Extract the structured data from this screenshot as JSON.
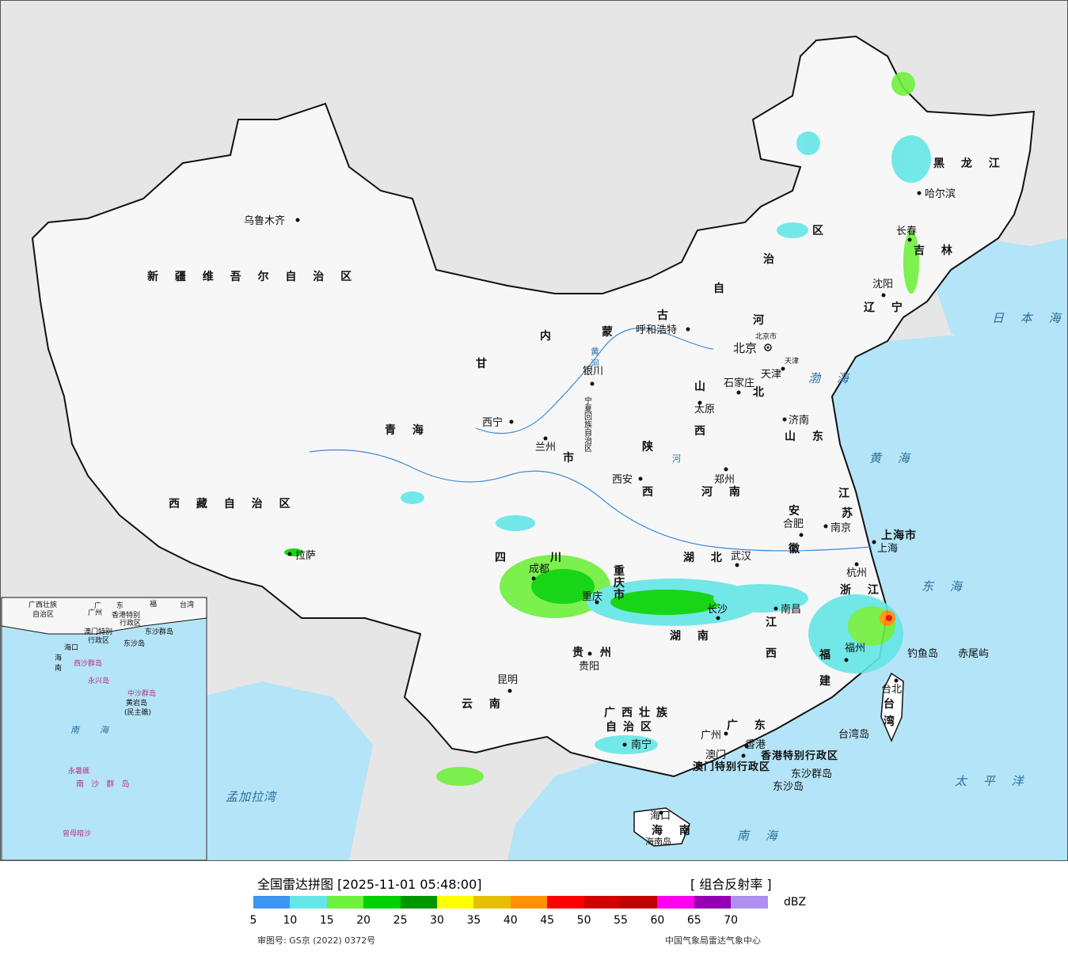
{
  "map": {
    "colors": {
      "land": "#ffffff",
      "foreign_land": "#e6e6e6",
      "sea": "#b4e4f7",
      "border": "#111111"
    },
    "provinces": [
      {
        "name": "新 疆 维 吾 尔 自 治 区"
      },
      {
        "name": "西 藏 自 治 区"
      },
      {
        "name": "青 海"
      },
      {
        "name": "甘"
      },
      {
        "name": "四"
      },
      {
        "name": "川"
      },
      {
        "name": "云 南"
      },
      {
        "name": "内"
      },
      {
        "name": "蒙"
      },
      {
        "name": "古"
      },
      {
        "name": "自"
      },
      {
        "name": "治"
      },
      {
        "name": "区"
      },
      {
        "name": "黑 龙 江"
      },
      {
        "name": "吉 林"
      },
      {
        "name": "辽 宁"
      },
      {
        "name": "河"
      },
      {
        "name": "北"
      },
      {
        "name": "山"
      },
      {
        "name": "西"
      },
      {
        "name": "山 东"
      },
      {
        "name": "陕"
      },
      {
        "name": "西"
      },
      {
        "name": "河 南"
      },
      {
        "name": "湖 北"
      },
      {
        "name": "湖 南"
      },
      {
        "name": "贵 州"
      },
      {
        "name": "广西壮族"
      },
      {
        "name": "自治区"
      },
      {
        "name": "广 东"
      },
      {
        "name": "江"
      },
      {
        "name": "西"
      },
      {
        "name": "浙 江"
      },
      {
        "name": "安"
      },
      {
        "name": "徽"
      },
      {
        "name": "江"
      },
      {
        "name": "苏"
      },
      {
        "name": "福"
      },
      {
        "name": "建"
      },
      {
        "name": "台"
      },
      {
        "name": "湾"
      },
      {
        "name": "海 南"
      },
      {
        "name": "上海市"
      },
      {
        "name": "重"
      },
      {
        "name": "庆"
      },
      {
        "name": "市"
      },
      {
        "name": "宁夏回族自治区"
      },
      {
        "name": "市"
      },
      {
        "name": "香港特别行政区"
      },
      {
        "name": "澳门特别行政区"
      }
    ],
    "cities": [
      {
        "name": "乌鲁木齐"
      },
      {
        "name": "拉萨"
      },
      {
        "name": "西宁"
      },
      {
        "name": "兰州"
      },
      {
        "name": "银川"
      },
      {
        "name": "呼和浩特"
      },
      {
        "name": "北京"
      },
      {
        "name": "北京市"
      },
      {
        "name": "天津"
      },
      {
        "name": "天津"
      },
      {
        "name": "石家庄"
      },
      {
        "name": "太原"
      },
      {
        "name": "济南"
      },
      {
        "name": "郑州"
      },
      {
        "name": "西安"
      },
      {
        "name": "成都"
      },
      {
        "name": "重庆"
      },
      {
        "name": "武汉"
      },
      {
        "name": "长沙"
      },
      {
        "name": "南昌"
      },
      {
        "name": "合肥"
      },
      {
        "name": "南京"
      },
      {
        "name": "上海"
      },
      {
        "name": "杭州"
      },
      {
        "name": "福州"
      },
      {
        "name": "台北"
      },
      {
        "name": "贵阳"
      },
      {
        "name": "昆明"
      },
      {
        "name": "南宁"
      },
      {
        "name": "广州"
      },
      {
        "name": "澳门"
      },
      {
        "name": "香港"
      },
      {
        "name": "海口"
      },
      {
        "name": "哈尔滨"
      },
      {
        "name": "长春"
      },
      {
        "name": "沈阳"
      },
      {
        "name": "钓鱼岛"
      },
      {
        "name": "赤尾屿"
      },
      {
        "name": "台湾岛"
      },
      {
        "name": "东沙群岛"
      },
      {
        "name": "东沙岛"
      },
      {
        "name": "海南岛"
      }
    ],
    "seas": [
      {
        "name": "日 本 海"
      },
      {
        "name": "渤 海"
      },
      {
        "name": "黄 海"
      },
      {
        "name": "东 海"
      },
      {
        "name": "太 平 洋"
      },
      {
        "name": "南 海"
      },
      {
        "name": "孟加拉湾"
      }
    ],
    "rivers": [
      {
        "name": "黄"
      },
      {
        "name": "河"
      },
      {
        "name": "河"
      }
    ],
    "inset": {
      "labels": [
        {
          "name": "广西壮族"
        },
        {
          "name": "自治区"
        },
        {
          "name": "广"
        },
        {
          "name": "东"
        },
        {
          "name": "福"
        },
        {
          "name": "台湾"
        },
        {
          "name": "广州"
        },
        {
          "name": "香港特别"
        },
        {
          "name": "澳门特别"
        },
        {
          "name": "行政区"
        },
        {
          "name": "行政区"
        },
        {
          "name": "东沙群岛"
        },
        {
          "name": "东沙岛"
        },
        {
          "name": "海口"
        },
        {
          "name": "海"
        },
        {
          "name": "南"
        },
        {
          "name": "西沙群岛"
        },
        {
          "name": "中沙群岛"
        },
        {
          "name": "永兴岛"
        },
        {
          "name": "黄岩岛"
        },
        {
          "name": "(民主礁)"
        },
        {
          "name": "南"
        },
        {
          "name": "海"
        },
        {
          "name": "南 沙 群 岛"
        },
        {
          "name": "永暑礁"
        },
        {
          "name": "曾母暗沙"
        }
      ]
    }
  },
  "footer": {
    "title": "全国雷达拼图 [2025-11-01 05:48:00]",
    "product": "[ 组合反射率 ]",
    "unit": "dBZ",
    "legend_colors": [
      "#3c96f0",
      "#64e6e6",
      "#6ef03c",
      "#00d200",
      "#009600",
      "#ffff00",
      "#e6c000",
      "#ff9000",
      "#ff0000",
      "#d20000",
      "#c00000",
      "#ff00f0",
      "#9600b4",
      "#ad90f0"
    ],
    "ticks": [
      "5",
      "10",
      "15",
      "20",
      "25",
      "30",
      "35",
      "40",
      "45",
      "50",
      "55",
      "60",
      "65",
      "70"
    ],
    "approval": "审图号: GS京 (2022) 0372号",
    "source": "中国气象局雷达气象中心"
  }
}
